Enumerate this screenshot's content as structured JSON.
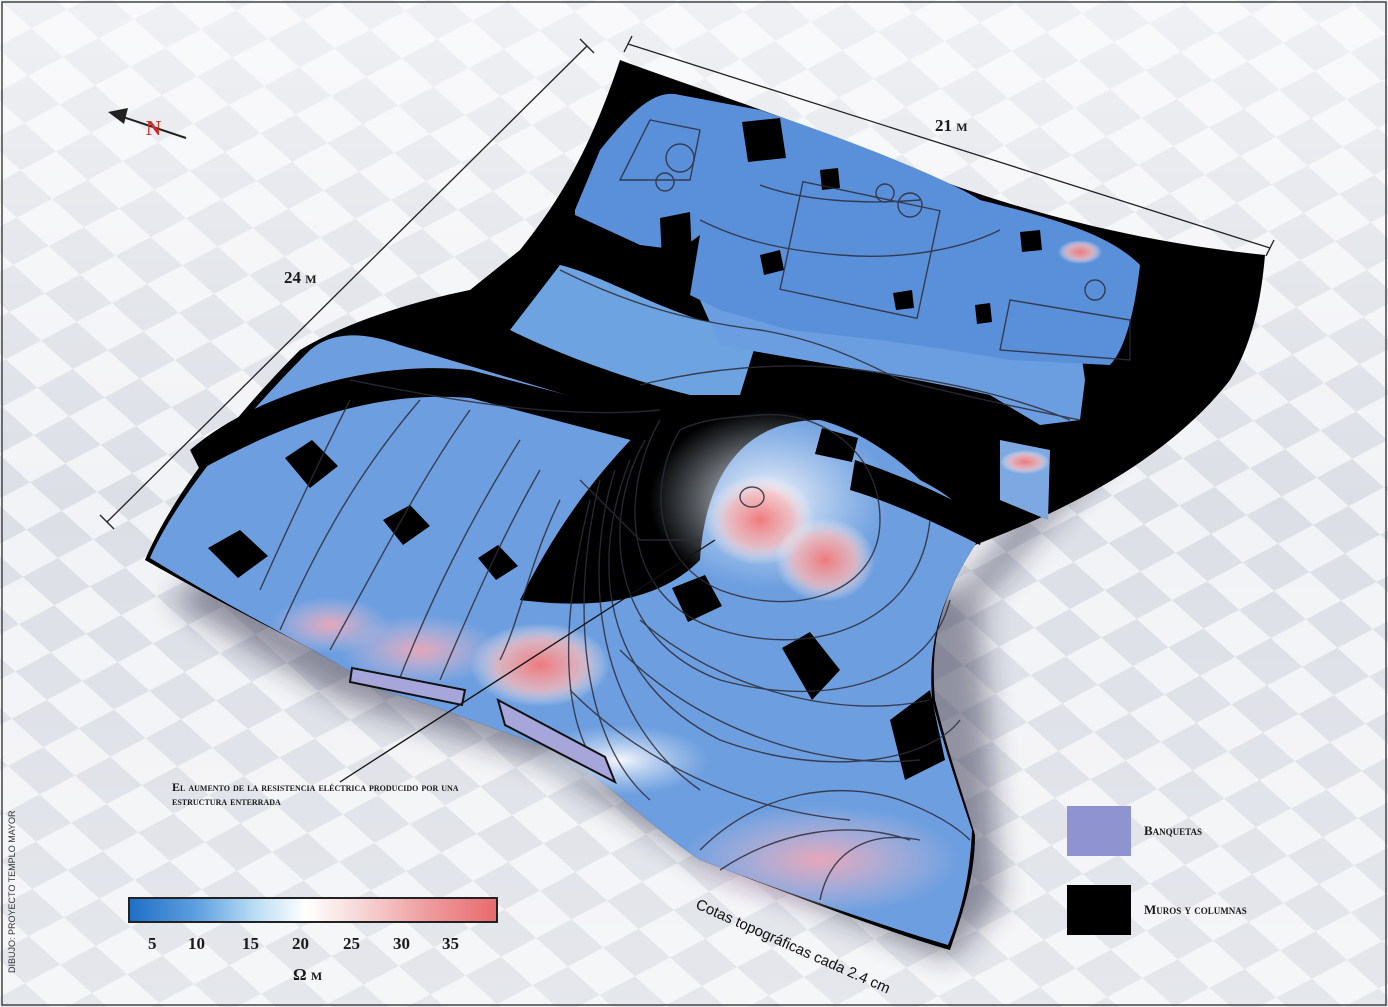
{
  "labels": {
    "dim_side": "24 m",
    "dim_top": "21 m",
    "north": "N",
    "annotation": "El aumento de la resistencia eléctrica producido por una estructura enterrada",
    "contour_note": "Cotas topográficas cada 2.4 cm",
    "credit": "DIBUJO: PROYECTO TEMPLO MAYOR"
  },
  "legend": [
    {
      "label": "Banquetas",
      "color": "#8f94d0"
    },
    {
      "label": "Muros y columnas",
      "color": "#000000"
    }
  ],
  "colorbar": {
    "ticks": [
      "5",
      "10",
      "15",
      "20",
      "25",
      "30",
      "35"
    ],
    "unit": "Ω m",
    "colors": [
      "#1f6fc6",
      "#ffffff",
      "#e86b6f"
    ]
  }
}
